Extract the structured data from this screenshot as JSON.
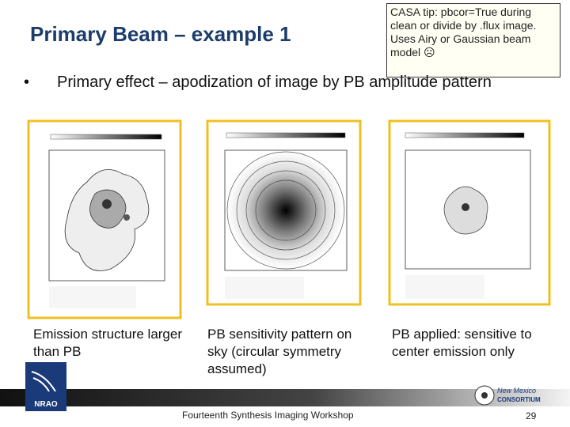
{
  "header": {
    "title": "Primary Beam – example 1"
  },
  "tip": {
    "text": "CASA tip: pbcor=True during clean or divide by .flux image. Uses Airy or Gaussian beam model ☹"
  },
  "bullets": [
    "Primary effect – apodization of image by PB amplitude pattern"
  ],
  "panels": [
    {
      "caption": "Emission structure larger than PB"
    },
    {
      "caption": "PB sensitivity pattern on sky (circular symmetry assumed)"
    },
    {
      "caption": "PB applied: sensitive to center emission only"
    }
  ],
  "footer": {
    "workshop": "Fourteenth Synthesis Imaging Workshop",
    "page": "29",
    "logo_left": "NRAO",
    "logo_right_1": "New Mexico",
    "logo_right_2": "CONSORTIUM"
  }
}
